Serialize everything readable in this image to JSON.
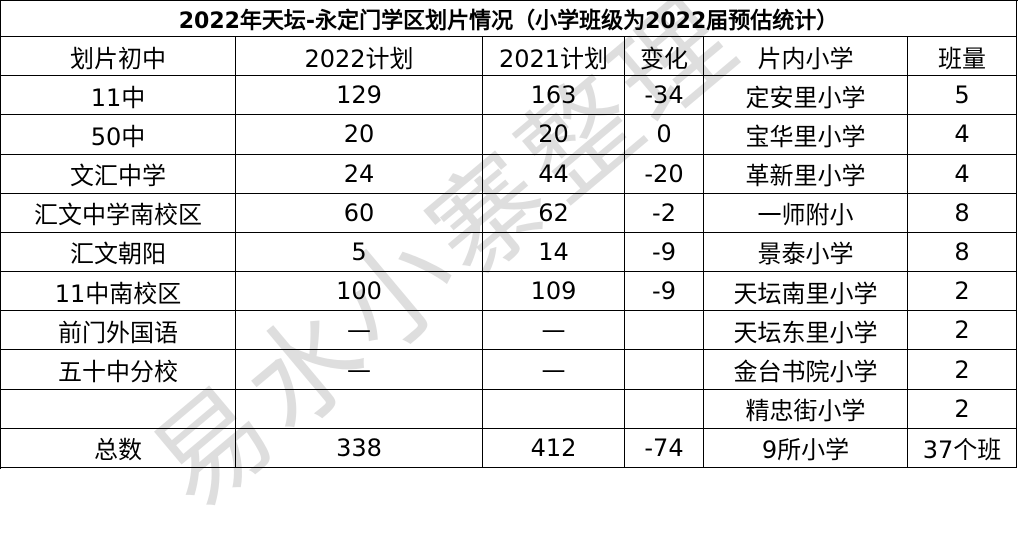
{
  "table": {
    "title": "2022年天坛-永定门学区划片情况（小学班级为2022届预估统计）",
    "header": [
      "划片初中",
      "2022计划",
      "2021计划",
      "变化",
      "片内小学",
      "班量"
    ],
    "rows": [
      [
        "11中",
        "129",
        "163",
        "-34",
        "定安里小学",
        "5"
      ],
      [
        "50中",
        "20",
        "20",
        "0",
        "宝华里小学",
        "4"
      ],
      [
        "文汇中学",
        "24",
        "44",
        "-20",
        "革新里小学",
        "4"
      ],
      [
        "汇文中学南校区",
        "60",
        "62",
        "-2",
        "一师附小",
        "8"
      ],
      [
        "汇文朝阳",
        "5",
        "14",
        "-9",
        "景泰小学",
        "8"
      ],
      [
        "11中南校区",
        "100",
        "109",
        "-9",
        "天坛南里小学",
        "2"
      ],
      [
        "前门外国语",
        "—",
        "—",
        null,
        "天坛东里小学",
        "2"
      ],
      [
        "五十中分校",
        "—",
        "—",
        null,
        "金台书院小学",
        "2"
      ],
      [
        null,
        null,
        null,
        null,
        "精忠街小学",
        "2"
      ]
    ],
    "total": [
      "总数",
      "338",
      "412",
      "-74",
      "9所小学",
      "37个班"
    ]
  },
  "watermark": "易水小寨整理"
}
